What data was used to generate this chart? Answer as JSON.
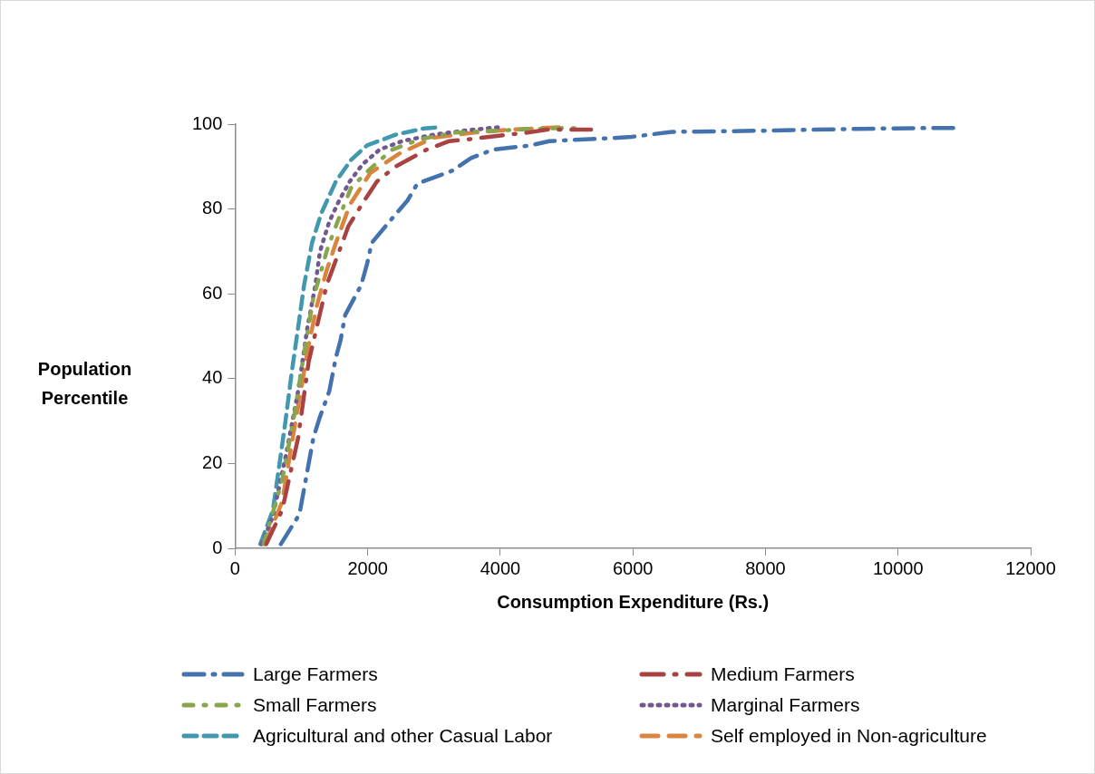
{
  "chart_data": {
    "type": "line",
    "xlabel": "Consumption Expenditure (Rs.)",
    "ylabel": "Population Percentile",
    "xlim": [
      0,
      12000
    ],
    "xticks": [
      0,
      2000,
      4000,
      6000,
      8000,
      10000,
      12000
    ],
    "ylim": [
      0,
      100
    ],
    "yticks": [
      0,
      20,
      40,
      60,
      80,
      100
    ],
    "grid": false,
    "legend": "bottom",
    "marker": "none",
    "series": [
      {
        "name": "Large Farmers",
        "color": "#4372ae",
        "line_style": "dashed",
        "x": [
          690,
          970,
          1180,
          1280,
          1420,
          1520,
          1590,
          1660,
          1900,
          1990,
          2060,
          2380,
          2600,
          2750,
          3270,
          3560,
          3890,
          4460,
          4740,
          5650,
          5980,
          6590,
          7210,
          8110,
          9350,
          10580,
          10900
        ],
        "values": [
          1,
          8,
          26,
          31,
          37,
          45,
          49,
          55,
          62,
          67,
          72,
          78,
          82,
          86,
          89,
          92,
          94,
          95,
          96,
          96.7,
          97,
          98.2,
          98.3,
          98.5,
          98.9,
          99.1,
          99.1
        ]
      },
      {
        "name": "Medium Farmers",
        "color": "#a94343",
        "line_style": "dashed",
        "x": [
          470,
          710,
          950,
          1110,
          1380,
          1710,
          1950,
          2140,
          2420,
          2890,
          3230,
          3560,
          4090,
          4410,
          4700,
          5370
        ],
        "values": [
          1,
          9,
          26,
          44,
          62,
          76,
          82,
          86.5,
          90,
          94,
          96,
          96.5,
          97.5,
          98,
          98.7,
          98.7
        ]
      },
      {
        "name": "Small Farmers",
        "color": "#89a54e",
        "line_style": "dashed",
        "x": [
          430,
          710,
          900,
          1020,
          1180,
          1400,
          1570,
          1750,
          2040,
          2370,
          2800,
          3320,
          4270,
          4940,
          5170
        ],
        "values": [
          1,
          16,
          32,
          44,
          59,
          71,
          78,
          85,
          89.5,
          94,
          96.5,
          98,
          98.7,
          99.1,
          99
        ]
      },
      {
        "name": "Marginal Farmers",
        "color": "#71588f",
        "line_style": "dotted",
        "x": [
          400,
          570,
          780,
          950,
          1090,
          1210,
          1280,
          1420,
          1570,
          1730,
          1920,
          2180,
          2520,
          2990,
          3460,
          3990
        ],
        "values": [
          1,
          7.5,
          23,
          37,
          52,
          62,
          70,
          77,
          82,
          86.5,
          90.5,
          94,
          96,
          97.5,
          98.5,
          99.3
        ]
      },
      {
        "name": "Agricultural and other Casual Labor",
        "color": "#4198af",
        "line_style": "dashed",
        "x": [
          380,
          570,
          670,
          760,
          850,
          950,
          1040,
          1160,
          1300,
          1520,
          1750,
          1990,
          2420,
          2850,
          3090
        ],
        "values": [
          1,
          9,
          20,
          30,
          41,
          52,
          62,
          72,
          79,
          86.5,
          91.6,
          95,
          97.5,
          99,
          99.3
        ]
      },
      {
        "name": "Self employed in Non-agriculture",
        "color": "#db843d",
        "line_style": "dashed",
        "x": [
          450,
          710,
          880,
          1000,
          1110,
          1230,
          1380,
          1520,
          1730,
          2040,
          2470,
          2990,
          3600,
          4130,
          4940
        ],
        "values": [
          1,
          11,
          27,
          38,
          48,
          57,
          65.5,
          72,
          81,
          88.5,
          93,
          96.8,
          98,
          98.7,
          99.3
        ]
      }
    ]
  }
}
